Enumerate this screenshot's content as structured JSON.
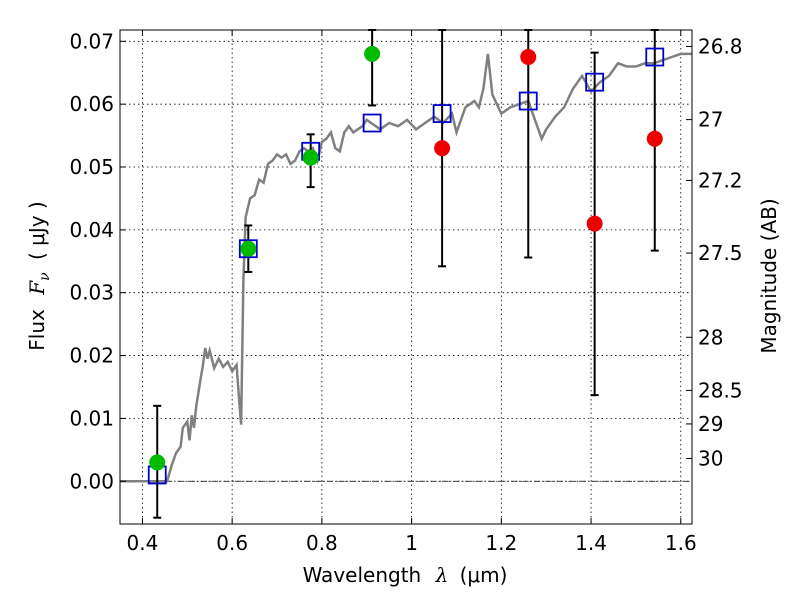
{
  "chart_data": {
    "type": "scatter",
    "xlabel": "Wavelength",
    "xlabel_symbol": "λ",
    "xlabel_unit": "(μm)",
    "ylabel": "Flux",
    "ylabel_symbol": "F",
    "ylabel_sub": "ν",
    "ylabel_unit": "( μJy )",
    "y2label": "Magnitude (AB)",
    "xlim": [
      0.35,
      1.625
    ],
    "ylim": [
      -0.0068,
      0.0718
    ],
    "grid": true,
    "x_ticks": [
      0.4,
      0.6,
      0.8,
      1.0,
      1.2,
      1.4,
      1.6
    ],
    "x_tick_labels": [
      "0.4",
      "0.6",
      "0.8",
      "1",
      "1.2",
      "1.4",
      "1.6"
    ],
    "y_ticks": [
      0.0,
      0.01,
      0.02,
      0.03,
      0.04,
      0.05,
      0.06,
      0.07
    ],
    "y_tick_labels": [
      "0.00",
      "0.01",
      "0.02",
      "0.03",
      "0.04",
      "0.05",
      "0.06",
      "0.07"
    ],
    "mag_ticks": [
      26.8,
      27,
      27.2,
      27.5,
      28,
      28.5,
      29,
      30
    ],
    "mag_tick_labels": [
      "26.8",
      "27",
      "27.2",
      "27.5",
      "28",
      "28.5",
      "29",
      "30"
    ],
    "colors": {
      "model": "#808080",
      "model_flux": "#0000cc",
      "detection": "#00bb00",
      "low_significance": "#ee0000",
      "errorbar": "#000000",
      "zero_line": "#000000"
    },
    "series": [
      {
        "kind": "model_spectrum",
        "points": [
          [
            0.35,
            0.0
          ],
          [
            0.455,
            0.0
          ],
          [
            0.465,
            0.0025
          ],
          [
            0.475,
            0.0045
          ],
          [
            0.485,
            0.0055
          ],
          [
            0.49,
            0.0085
          ],
          [
            0.5,
            0.0095
          ],
          [
            0.505,
            0.0065
          ],
          [
            0.51,
            0.0105
          ],
          [
            0.515,
            0.0085
          ],
          [
            0.52,
            0.012
          ],
          [
            0.53,
            0.0165
          ],
          [
            0.535,
            0.0185
          ],
          [
            0.54,
            0.0212
          ],
          [
            0.545,
            0.0195
          ],
          [
            0.55,
            0.0208
          ],
          [
            0.56,
            0.018
          ],
          [
            0.57,
            0.0195
          ],
          [
            0.58,
            0.0182
          ],
          [
            0.59,
            0.019
          ],
          [
            0.6,
            0.0175
          ],
          [
            0.61,
            0.0185
          ],
          [
            0.615,
            0.0135
          ],
          [
            0.62,
            0.009
          ],
          [
            0.625,
            0.032
          ],
          [
            0.63,
            0.042
          ],
          [
            0.64,
            0.045
          ],
          [
            0.65,
            0.0455
          ],
          [
            0.66,
            0.048
          ],
          [
            0.67,
            0.0475
          ],
          [
            0.68,
            0.0505
          ],
          [
            0.69,
            0.051
          ],
          [
            0.7,
            0.052
          ],
          [
            0.71,
            0.0515
          ],
          [
            0.72,
            0.052
          ],
          [
            0.73,
            0.0505
          ],
          [
            0.74,
            0.051
          ],
          [
            0.75,
            0.0525
          ],
          [
            0.76,
            0.053
          ],
          [
            0.77,
            0.0525
          ],
          [
            0.78,
            0.053
          ],
          [
            0.79,
            0.051
          ],
          [
            0.8,
            0.054
          ],
          [
            0.81,
            0.0545
          ],
          [
            0.82,
            0.0555
          ],
          [
            0.83,
            0.053
          ],
          [
            0.84,
            0.0525
          ],
          [
            0.85,
            0.0555
          ],
          [
            0.86,
            0.0565
          ],
          [
            0.87,
            0.0555
          ],
          [
            0.88,
            0.056
          ],
          [
            0.89,
            0.0565
          ],
          [
            0.9,
            0.0575
          ],
          [
            0.91,
            0.057
          ],
          [
            0.93,
            0.056
          ],
          [
            0.95,
            0.057
          ],
          [
            0.97,
            0.0565
          ],
          [
            0.99,
            0.0575
          ],
          [
            1.01,
            0.056
          ],
          [
            1.03,
            0.057
          ],
          [
            1.05,
            0.058
          ],
          [
            1.07,
            0.057
          ],
          [
            1.09,
            0.0585
          ],
          [
            1.1,
            0.0555
          ],
          [
            1.12,
            0.0595
          ],
          [
            1.14,
            0.0605
          ],
          [
            1.15,
            0.0595
          ],
          [
            1.16,
            0.0625
          ],
          [
            1.17,
            0.068
          ],
          [
            1.18,
            0.0615
          ],
          [
            1.2,
            0.0585
          ],
          [
            1.22,
            0.0595
          ],
          [
            1.24,
            0.06
          ],
          [
            1.26,
            0.0605
          ],
          [
            1.27,
            0.0585
          ],
          [
            1.29,
            0.0545
          ],
          [
            1.3,
            0.056
          ],
          [
            1.32,
            0.058
          ],
          [
            1.34,
            0.0595
          ],
          [
            1.36,
            0.0625
          ],
          [
            1.38,
            0.0645
          ],
          [
            1.4,
            0.062
          ],
          [
            1.42,
            0.0635
          ],
          [
            1.44,
            0.0645
          ],
          [
            1.46,
            0.0665
          ],
          [
            1.48,
            0.066
          ],
          [
            1.5,
            0.066
          ],
          [
            1.52,
            0.0665
          ],
          [
            1.54,
            0.0665
          ],
          [
            1.56,
            0.067
          ],
          [
            1.58,
            0.0675
          ],
          [
            1.6,
            0.068
          ],
          [
            1.625,
            0.068
          ]
        ]
      },
      {
        "kind": "model_flux",
        "x": [
          0.433,
          0.636,
          0.775,
          0.912,
          1.068,
          1.26,
          1.408,
          1.542
        ],
        "y": [
          0.001,
          0.037,
          0.0525,
          0.057,
          0.0585,
          0.0605,
          0.0635,
          0.0675
        ]
      },
      {
        "kind": "detection",
        "x": [
          0.433,
          0.636,
          0.775,
          0.912
        ],
        "y": [
          0.003,
          0.037,
          0.0515,
          0.068
        ],
        "err_low": [
          -0.0058,
          0.0333,
          0.0468,
          0.0598
        ],
        "err_high": [
          0.012,
          0.0407,
          0.0552,
          0.0718
        ]
      },
      {
        "kind": "low_significance",
        "x": [
          1.068,
          1.26,
          1.408,
          1.542
        ],
        "y": [
          0.053,
          0.0675,
          0.041,
          0.0545
        ],
        "err_low": [
          0.0342,
          0.0356,
          0.0137,
          0.0367
        ],
        "err_high": [
          0.0718,
          0.0718,
          0.0682,
          0.0718
        ]
      }
    ]
  }
}
